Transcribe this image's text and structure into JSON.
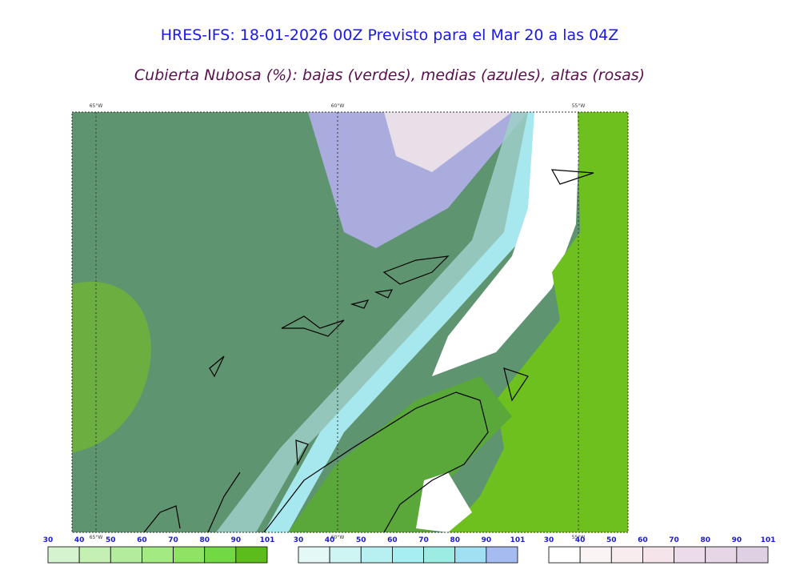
{
  "header": {
    "title": "HRES-IFS: 18-01-2026 00Z Previsto para el Mar 20 a las 04Z",
    "subtitle": "Cubierta Nubosa (%): bajas (verdes), medias (azules), altas (rosas)"
  },
  "map": {
    "lon_labels": [
      "65°W",
      "60°W",
      "55°W"
    ]
  },
  "colorbars": [
    {
      "ticks": [
        30,
        40,
        50,
        60,
        70,
        80,
        90,
        101
      ],
      "colors": [
        "#d6f3d0",
        "#c4f0b4",
        "#b2ec9c",
        "#a4ea82",
        "#8ee462",
        "#72d844",
        "#5cbc1c"
      ]
    },
    {
      "ticks": [
        30,
        40,
        50,
        60,
        70,
        80,
        90,
        101
      ],
      "colors": [
        "#e4f8f6",
        "#cef4f4",
        "#b8f0f2",
        "#a6eef0",
        "#9cece4",
        "#a0e0f2",
        "#a6bcf0"
      ]
    },
    {
      "ticks": [
        30,
        40,
        50,
        60,
        70,
        80,
        90,
        101
      ],
      "colors": [
        "#ffffff",
        "#fbf4f5",
        "#f8ecef",
        "#f5e4ea",
        "#ecdcea",
        "#e6d6e6",
        "#e0d0e4"
      ]
    }
  ]
}
